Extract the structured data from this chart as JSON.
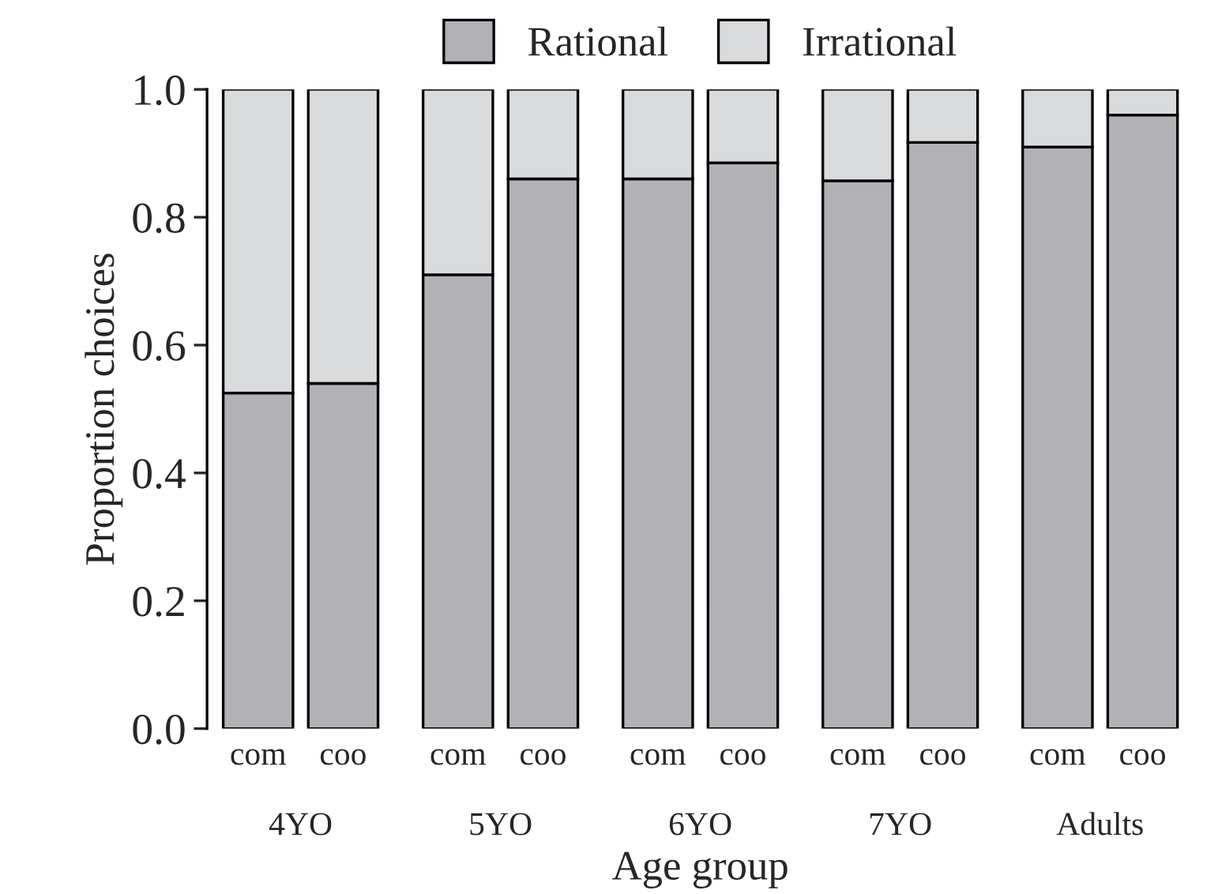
{
  "chart_data": {
    "type": "bar",
    "stacked": true,
    "xlabel": "Age group",
    "ylabel": "Proportion choices",
    "categories": [
      "com",
      "coo",
      "com",
      "coo",
      "com",
      "coo",
      "com",
      "coo",
      "com",
      "coo"
    ],
    "series": [
      {
        "name": "Rational",
        "color": "#b1b1b6",
        "values": [
          0.525,
          0.54,
          0.71,
          0.86,
          0.86,
          0.885,
          0.857,
          0.917,
          0.91,
          0.96
        ]
      },
      {
        "name": "Irrational",
        "color": "#d9dadc",
        "values": [
          0.475,
          0.46,
          0.29,
          0.14,
          0.14,
          0.115,
          0.143,
          0.083,
          0.09,
          0.04
        ]
      }
    ],
    "annotations": [
      "4YO",
      "5YO",
      "6YO",
      "7YO",
      "Adults"
    ],
    "ylim": [
      0,
      1
    ],
    "yticks": [
      {
        "value": 0,
        "label": "0.0"
      },
      {
        "value": 0.2,
        "label": "0.2"
      },
      {
        "value": 0.4,
        "label": "0.4"
      },
      {
        "value": 0.6,
        "label": "0.6"
      },
      {
        "value": 0.8,
        "label": "0.8"
      },
      {
        "value": 1,
        "label": "1.0"
      }
    ],
    "grid": false,
    "legend": "top"
  }
}
